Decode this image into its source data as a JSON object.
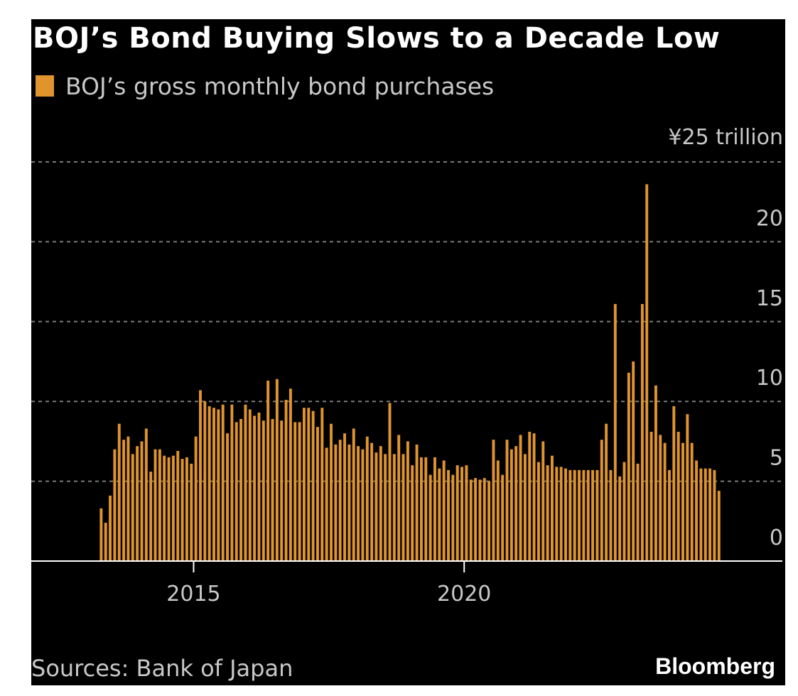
{
  "colors": {
    "background": "#000000",
    "bar": "#e0942e",
    "text": "#c8c8c8",
    "grid": "#7a7a7a"
  },
  "chart_data": {
    "type": "bar",
    "title": "BOJ’s Bond Buying Slows to a Decade Low",
    "legend": [
      "BOJ’s gross monthly bond purchases"
    ],
    "ylabel": "¥ trillion",
    "ylim": [
      0,
      25
    ],
    "yticks": [
      {
        "value": 25,
        "label": "¥25 trillion"
      },
      {
        "value": 20,
        "label": "20"
      },
      {
        "value": 15,
        "label": "15"
      },
      {
        "value": 10,
        "label": "10"
      },
      {
        "value": 5,
        "label": "5"
      },
      {
        "value": 0,
        "label": "0"
      }
    ],
    "xticks": [
      {
        "value": 2015,
        "label": "2015"
      },
      {
        "value": 2020,
        "label": "2020"
      }
    ],
    "xlim": [
      2012.0,
      2025.88
    ],
    "start_year": 2013,
    "start_month": 4,
    "series": [
      {
        "name": "BOJ’s gross monthly bond purchases",
        "values": [
          3.3,
          2.4,
          4.1,
          7.0,
          8.6,
          7.6,
          7.8,
          6.7,
          7.2,
          7.5,
          8.3,
          5.6,
          7.0,
          7.0,
          6.6,
          6.5,
          6.6,
          6.9,
          6.4,
          6.5,
          6.1,
          7.8,
          10.7,
          10.0,
          9.7,
          9.6,
          9.5,
          9.8,
          8.0,
          9.8,
          8.7,
          8.9,
          9.8,
          9.5,
          9.1,
          9.3,
          8.8,
          11.3,
          8.9,
          11.4,
          8.8,
          10.1,
          10.8,
          8.7,
          8.7,
          9.6,
          9.6,
          9.4,
          8.4,
          9.6,
          7.1,
          8.6,
          7.3,
          7.6,
          8.0,
          7.3,
          8.3,
          7.2,
          7.0,
          7.8,
          7.4,
          6.8,
          7.2,
          6.7,
          9.9,
          6.7,
          7.9,
          6.7,
          7.5,
          6.0,
          7.3,
          6.5,
          6.5,
          5.4,
          6.5,
          5.8,
          6.3,
          5.7,
          5.4,
          6.0,
          5.9,
          6.0,
          5.1,
          5.2,
          5.1,
          5.2,
          5.0,
          7.6,
          6.3,
          5.4,
          7.6,
          7.0,
          7.2,
          7.9,
          6.7,
          8.1,
          8.0,
          6.2,
          7.5,
          6.0,
          6.6,
          5.9,
          5.9,
          5.8,
          5.7,
          5.7,
          5.7,
          5.7,
          5.7,
          5.7,
          5.7,
          7.6,
          8.6,
          5.7,
          16.1,
          5.3,
          6.2,
          11.8,
          12.5,
          6.1,
          16.1,
          23.6,
          8.1,
          11.0,
          7.9,
          7.4,
          5.7,
          9.7,
          8.1,
          7.4,
          9.2,
          7.4,
          6.3,
          5.8,
          5.8,
          5.8,
          5.7,
          4.4
        ]
      }
    ]
  },
  "footer": {
    "source": "Sources: Bank of Japan",
    "brand": "Bloomberg"
  }
}
